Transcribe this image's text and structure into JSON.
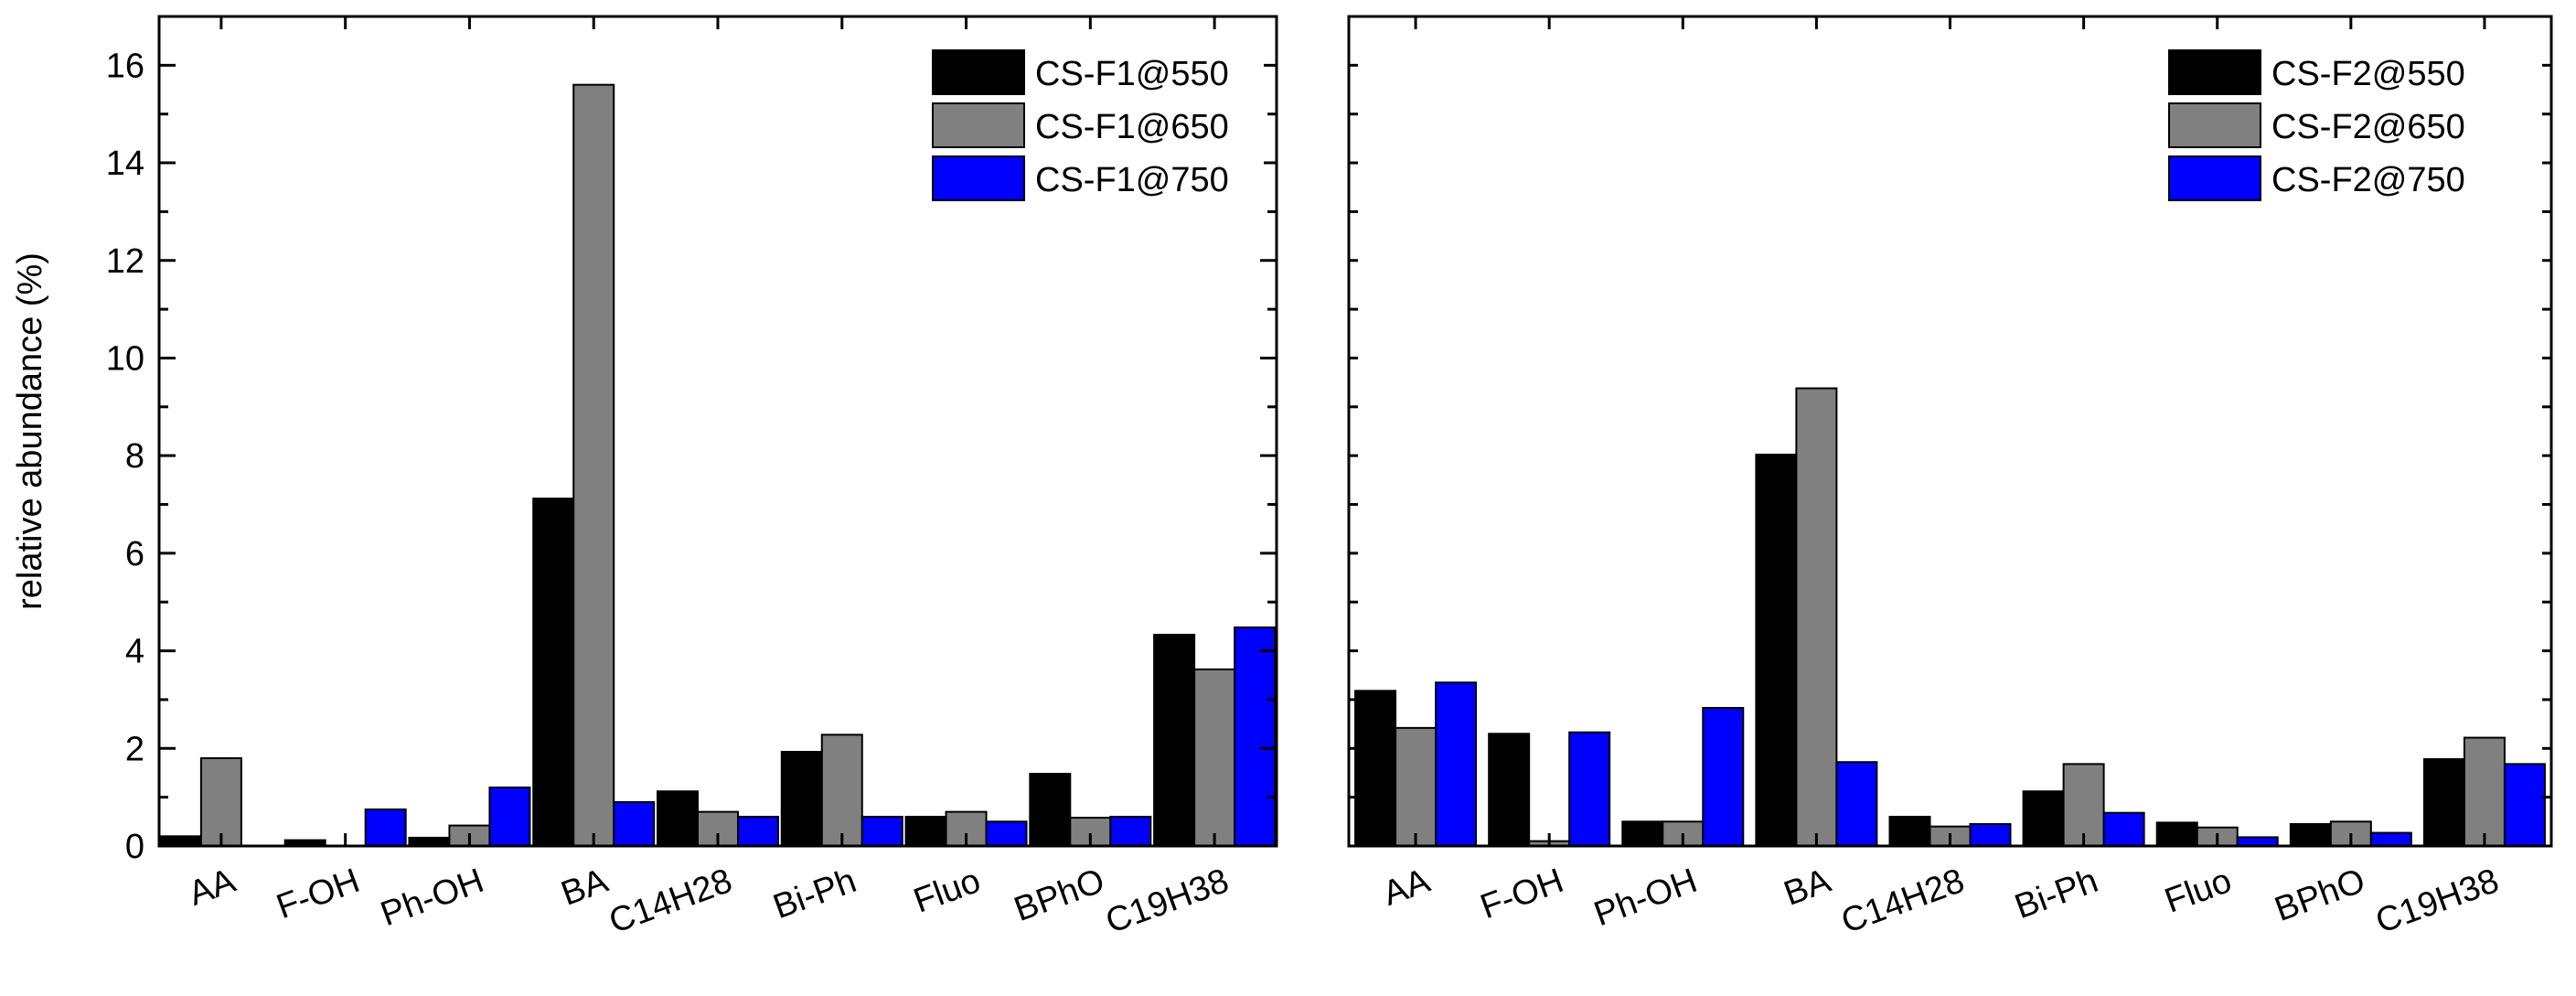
{
  "chart_data": [
    {
      "type": "bar",
      "title": "",
      "xlabel": "",
      "ylabel": "relative abundance (%)",
      "ylim": [
        0,
        17
      ],
      "yticks": [
        0,
        2,
        4,
        6,
        8,
        10,
        12,
        14,
        16
      ],
      "grid": false,
      "legend_position": "top-right",
      "categories": [
        "AA",
        "F-OH",
        "Ph-OH",
        "BA",
        "C14H28",
        "Bi-Ph",
        "Fluo",
        "BPhO",
        "C19H38"
      ],
      "series": [
        {
          "name": "CS-F1@550",
          "color": "#000000",
          "values": [
            0.2,
            0.12,
            0.17,
            7.12,
            1.12,
            1.93,
            0.6,
            1.48,
            4.33
          ]
        },
        {
          "name": "CS-F1@650",
          "color": "#808080",
          "values": [
            1.8,
            0.0,
            0.42,
            15.6,
            0.7,
            2.28,
            0.7,
            0.58,
            3.62
          ]
        },
        {
          "name": "CS-F1@750",
          "color": "#0000ff",
          "values": [
            0.0,
            0.75,
            1.2,
            0.9,
            0.6,
            0.6,
            0.5,
            0.6,
            4.48
          ]
        }
      ]
    },
    {
      "type": "bar",
      "title": "",
      "xlabel": "",
      "ylabel": "",
      "ylim": [
        0,
        17
      ],
      "yticks": [],
      "grid": false,
      "legend_position": "top-right",
      "categories": [
        "AA",
        "F-OH",
        "Ph-OH",
        "BA",
        "C14H28",
        "Bi-Ph",
        "Fluo",
        "BPhO",
        "C19H38"
      ],
      "series": [
        {
          "name": "CS-F2@550",
          "color": "#000000",
          "values": [
            3.18,
            2.3,
            0.5,
            8.02,
            0.6,
            1.12,
            0.48,
            0.45,
            1.78
          ]
        },
        {
          "name": "CS-F2@650",
          "color": "#808080",
          "values": [
            2.42,
            0.1,
            0.5,
            9.38,
            0.4,
            1.68,
            0.38,
            0.5,
            2.22
          ]
        },
        {
          "name": "CS-F2@750",
          "color": "#0000ff",
          "values": [
            3.35,
            2.33,
            2.83,
            1.72,
            0.45,
            0.68,
            0.18,
            0.27,
            1.68
          ]
        }
      ]
    }
  ]
}
